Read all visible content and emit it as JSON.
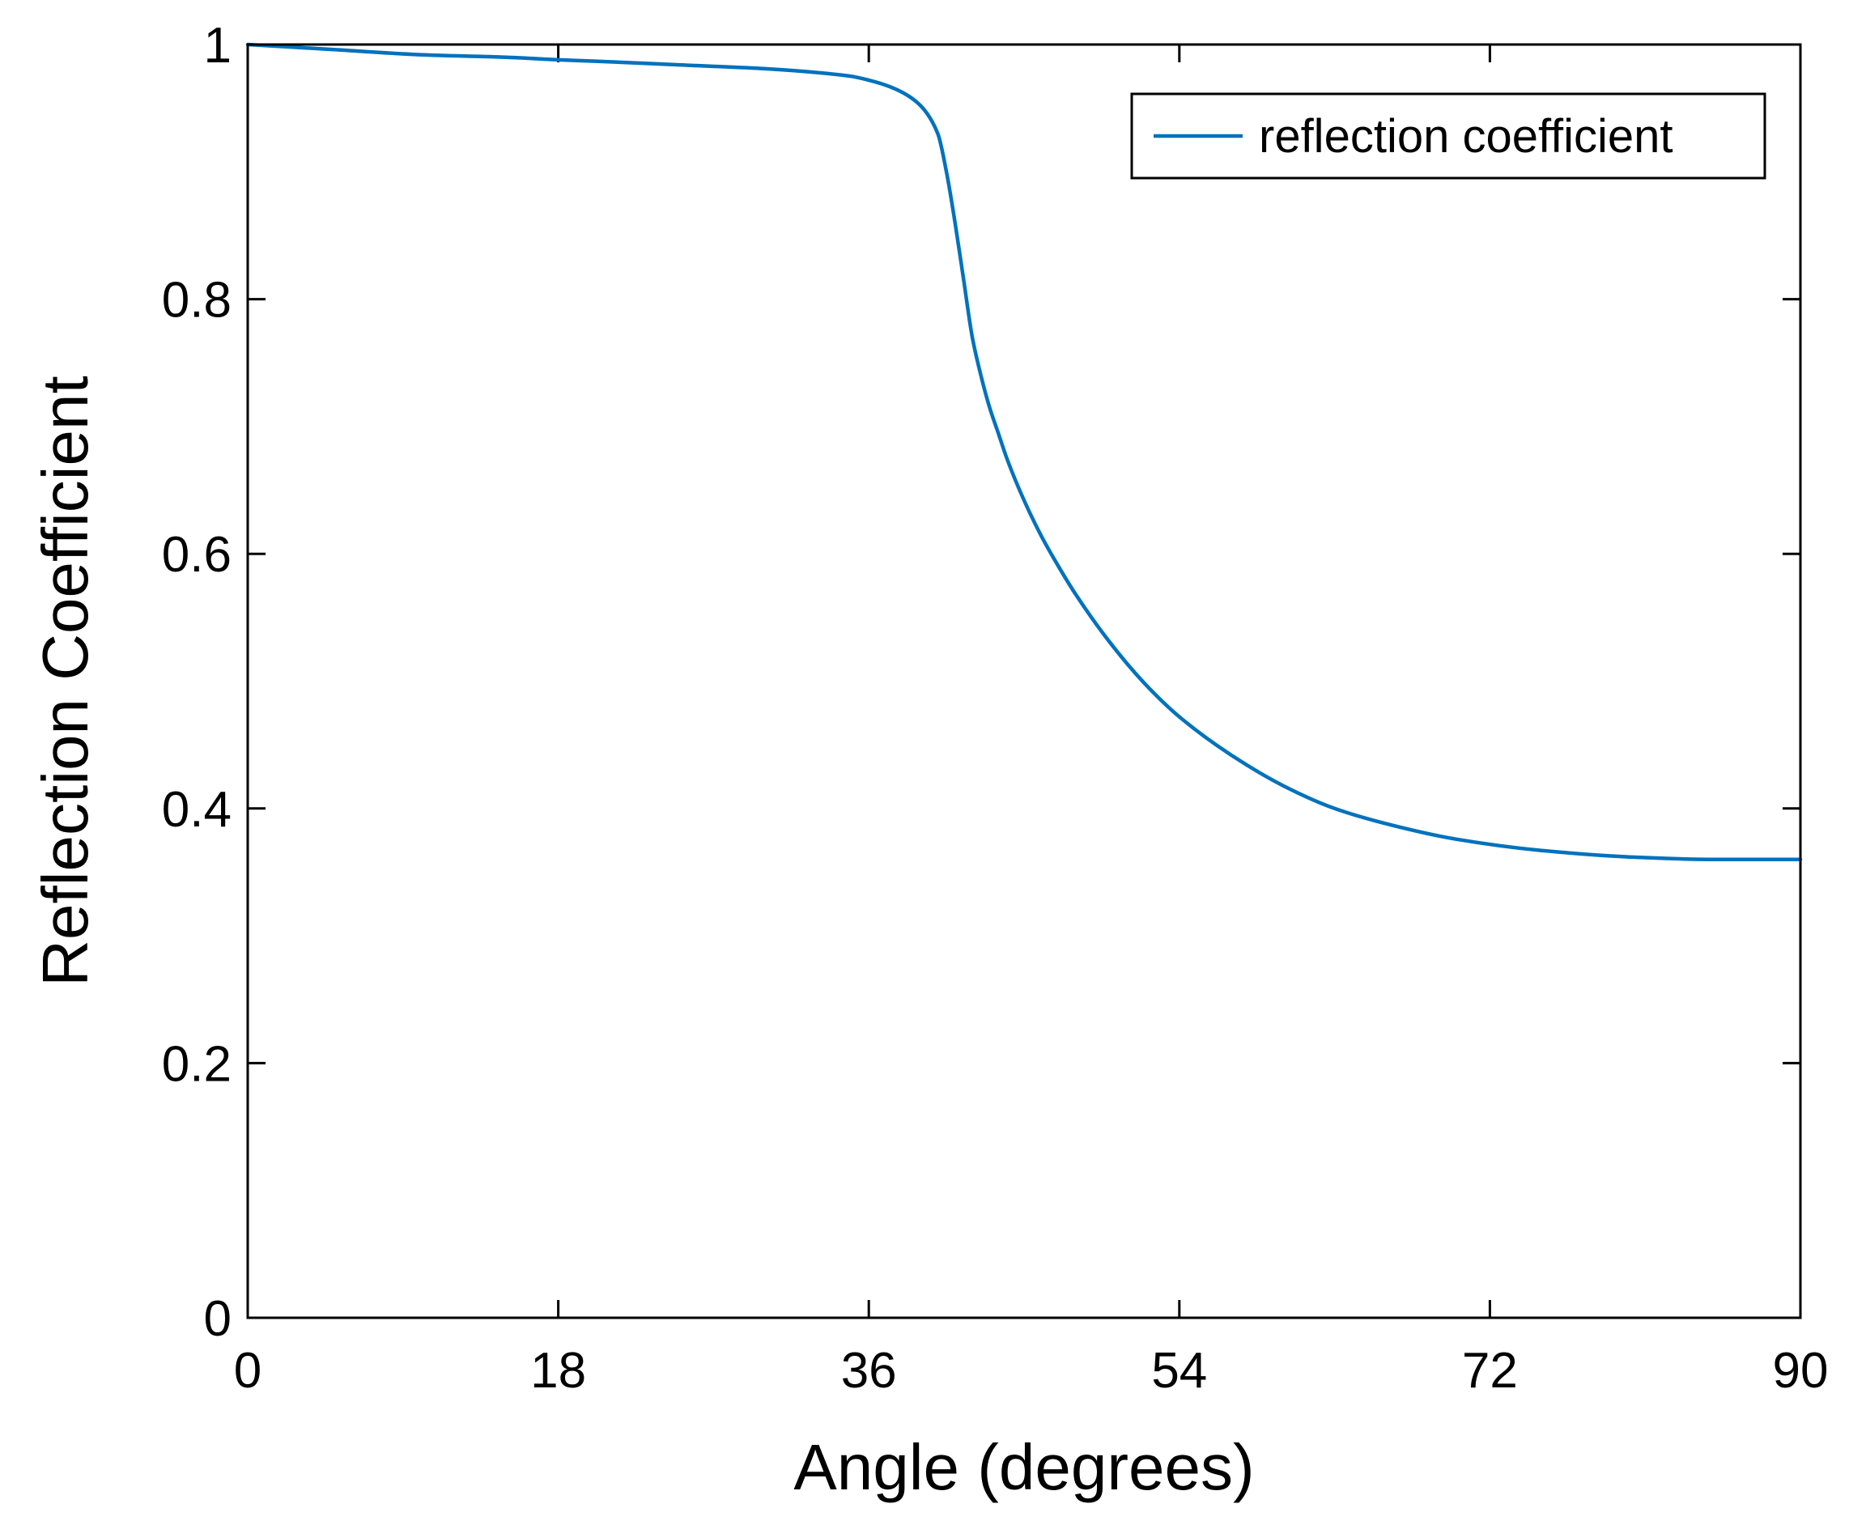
{
  "chart_data": {
    "type": "line",
    "title": "",
    "xlabel": "Angle (degrees)",
    "ylabel": "Reflection Coefficient",
    "xlim": [
      0,
      90
    ],
    "ylim": [
      0,
      1
    ],
    "xticks": [
      0,
      18,
      36,
      54,
      72,
      90
    ],
    "xtick_labels": [
      "0",
      "18",
      "36",
      "54",
      "72",
      "90"
    ],
    "yticks": [
      0,
      0.2,
      0.4,
      0.6,
      0.8,
      1
    ],
    "ytick_labels": [
      "0",
      "0.2",
      "0.4",
      "0.6",
      "0.8",
      "1"
    ],
    "grid": false,
    "legend": {
      "position": "top-right",
      "entries": [
        "reflection coefficient"
      ]
    },
    "series": [
      {
        "name": "reflection coefficient",
        "color": "#0072BD",
        "x": [
          0,
          5,
          10,
          15,
          18,
          20,
          25,
          30,
          33,
          35,
          36,
          37,
          38,
          39,
          40,
          40.5,
          41,
          41.5,
          42,
          42.5,
          43,
          43.5,
          44,
          45,
          46,
          47,
          48,
          50,
          52,
          54,
          57,
          60,
          63,
          66,
          70,
          75,
          80,
          85,
          90
        ],
        "y": [
          1.0,
          0.996,
          0.992,
          0.99,
          0.988,
          0.987,
          0.984,
          0.981,
          0.978,
          0.975,
          0.972,
          0.968,
          0.962,
          0.952,
          0.93,
          0.9,
          0.86,
          0.815,
          0.77,
          0.74,
          0.715,
          0.695,
          0.675,
          0.642,
          0.614,
          0.59,
          0.568,
          0.53,
          0.498,
          0.472,
          0.442,
          0.418,
          0.4,
          0.388,
          0.376,
          0.367,
          0.362,
          0.36,
          0.36
        ]
      }
    ]
  }
}
